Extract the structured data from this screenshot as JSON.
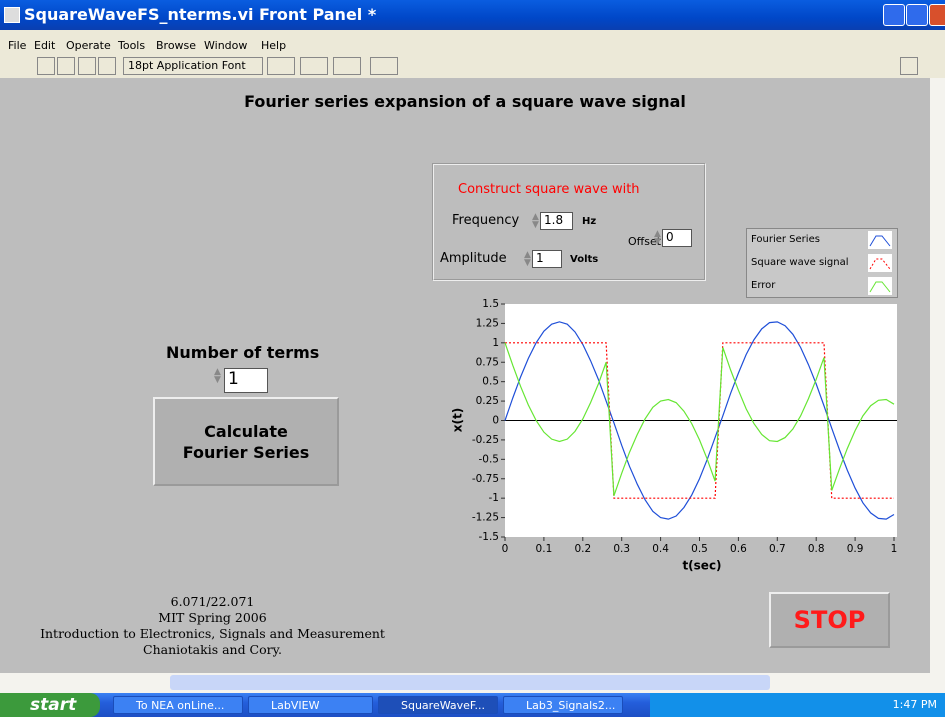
{
  "window": {
    "title": "SquareWaveFS_nterms.vi Front Panel *"
  },
  "menu": [
    "File",
    "Edit",
    "Operate",
    "Tools",
    "Browse",
    "Window",
    "Help"
  ],
  "toolbar": {
    "font": "18pt Application Font"
  },
  "panel": {
    "heading": "Fourier series expansion of a square wave signal"
  },
  "controls": {
    "title": "Construct square wave with",
    "frequency": {
      "label": "Frequency",
      "value": 1.8,
      "unit": "Hz"
    },
    "amplitude": {
      "label": "Amplitude",
      "value": 1,
      "unit": "Volts"
    },
    "offset": {
      "label": "Offset",
      "value": 0
    }
  },
  "terms": {
    "label": "Number of terms",
    "value": 1
  },
  "button": {
    "lines": [
      "Calculate",
      "Fourier Series"
    ]
  },
  "footer": [
    "6.071/22.071",
    "MIT  Spring 2006",
    "Introduction to Electronics, Signals and Measurement",
    "Chaniotakis and Cory."
  ],
  "stop": "STOP",
  "chart_data": {
    "type": "line",
    "x_label": "t(sec)",
    "y_label": "x(t)",
    "xlim": [
      0,
      1
    ],
    "ylim": [
      -1.5,
      1.5
    ],
    "xticks": [
      0,
      0.1,
      0.2,
      0.3,
      0.4,
      0.5,
      0.6,
      0.7,
      0.8,
      0.9,
      1
    ],
    "yticks": [
      1.5,
      1.25,
      1,
      0.75,
      0.5,
      0.25,
      0,
      -0.25,
      -0.5,
      -0.75,
      -1,
      -1.25,
      -1.5
    ],
    "x": [
      0,
      0.02,
      0.04,
      0.06,
      0.08,
      0.1,
      0.12,
      0.14,
      0.16,
      0.18,
      0.2,
      0.22,
      0.24,
      0.26,
      0.28,
      0.3,
      0.32,
      0.34,
      0.36,
      0.38,
      0.4,
      0.42,
      0.44,
      0.46,
      0.48,
      0.5,
      0.52,
      0.54,
      0.56,
      0.58,
      0.6,
      0.62,
      0.64,
      0.66,
      0.68,
      0.7,
      0.72,
      0.74,
      0.76,
      0.78,
      0.8,
      0.82,
      0.84,
      0.86,
      0.88,
      0.9,
      0.92,
      0.94,
      0.96,
      0.98,
      1
    ],
    "series": [
      {
        "name": "Fourier Series",
        "color": "#1f4fd8",
        "values": [
          0,
          0.29,
          0.56,
          0.8,
          1,
          1.15,
          1.24,
          1.27,
          1.24,
          1.14,
          0.98,
          0.77,
          0.53,
          0.25,
          -0.03,
          -0.32,
          -0.59,
          -0.82,
          -1.02,
          -1.17,
          -1.25,
          -1.27,
          -1.23,
          -1.12,
          -0.96,
          -0.75,
          -0.5,
          -0.22,
          0.06,
          0.35,
          0.61,
          0.85,
          1.04,
          1.18,
          1.26,
          1.27,
          1.22,
          1.11,
          0.94,
          0.72,
          0.47,
          0.19,
          -0.1,
          -0.38,
          -0.64,
          -0.87,
          -1.06,
          -1.19,
          -1.26,
          -1.27,
          -1.21
        ]
      },
      {
        "name": "Square wave signal",
        "color": "#ff0000",
        "values": [
          1,
          1,
          1,
          1,
          1,
          1,
          1,
          1,
          1,
          1,
          1,
          1,
          1,
          1,
          -1,
          -1,
          -1,
          -1,
          -1,
          -1,
          -1,
          -1,
          -1,
          -1,
          -1,
          -1,
          -1,
          -1,
          1,
          1,
          1,
          1,
          1,
          1,
          1,
          1,
          1,
          1,
          1,
          1,
          1,
          1,
          -1,
          -1,
          -1,
          -1,
          -1,
          -1,
          -1,
          -1,
          -1
        ]
      },
      {
        "name": "Error",
        "color": "#66e633",
        "values": [
          1,
          0.71,
          0.44,
          0.2,
          0,
          -0.15,
          -0.24,
          -0.27,
          -0.24,
          -0.14,
          0.02,
          0.23,
          0.47,
          0.75,
          -0.97,
          -0.68,
          -0.41,
          -0.18,
          0.02,
          0.17,
          0.25,
          0.27,
          0.23,
          0.12,
          -0.04,
          -0.25,
          -0.5,
          -0.78,
          0.94,
          0.65,
          0.39,
          0.15,
          -0.04,
          -0.18,
          -0.26,
          -0.27,
          -0.22,
          -0.11,
          0.06,
          0.28,
          0.53,
          0.81,
          -0.9,
          -0.62,
          -0.36,
          -0.13,
          0.06,
          0.19,
          0.26,
          0.27,
          0.21
        ]
      }
    ]
  },
  "taskbar": {
    "start": "start",
    "items": [
      "To NEA onLine...",
      "LabVIEW",
      "SquareWaveF...",
      "Lab3_Signals2..."
    ],
    "time": "1:47 PM"
  }
}
